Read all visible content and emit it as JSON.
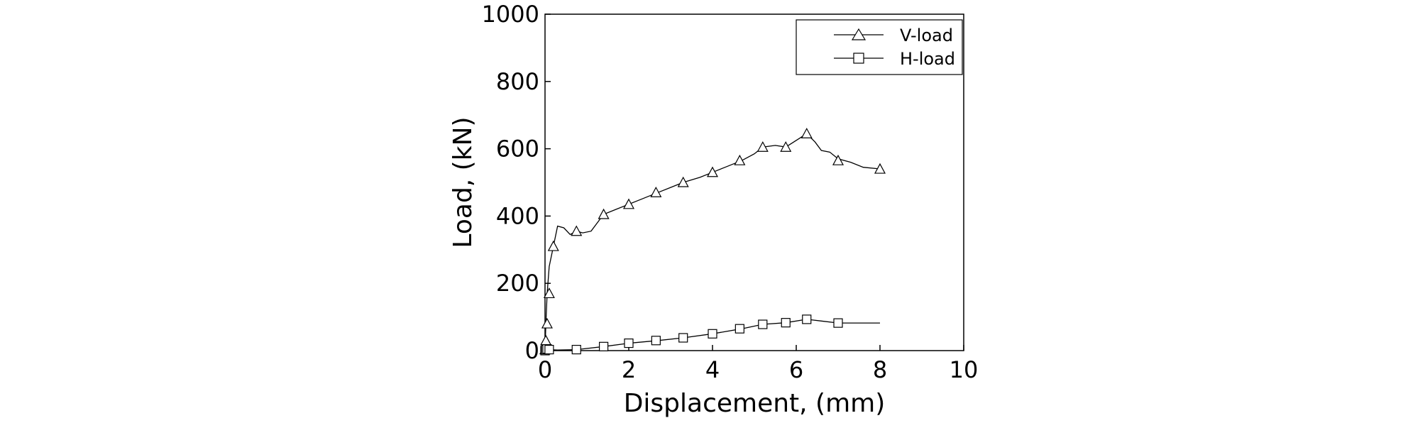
{
  "chart_data": {
    "type": "line",
    "xlabel": "Displacement, (mm)",
    "ylabel": "Load, (kN)",
    "xlim": [
      0,
      10
    ],
    "ylim": [
      0,
      1000
    ],
    "xticks": [
      0,
      2,
      4,
      6,
      8,
      10
    ],
    "yticks": [
      0,
      200,
      400,
      600,
      800,
      1000
    ],
    "grid": false,
    "legend_position": "top-right",
    "series": [
      {
        "name": "V-load",
        "marker": "triangle-icon",
        "color": "#000000",
        "x": [
          0,
          0.02,
          0.05,
          0.1,
          0.2,
          0.3,
          0.45,
          0.6,
          0.75,
          0.9,
          1.1,
          1.4,
          1.7,
          2.0,
          2.3,
          2.7,
          3.0,
          3.3,
          3.7,
          4.0,
          4.3,
          4.7,
          5.0,
          5.2,
          5.5,
          5.75,
          6.0,
          6.25,
          6.45,
          6.6,
          6.8,
          7.0,
          7.3,
          7.6,
          8.0
        ],
        "y": [
          0,
          80,
          170,
          250,
          310,
          370,
          365,
          345,
          355,
          350,
          355,
          405,
          420,
          435,
          450,
          470,
          485,
          500,
          515,
          530,
          545,
          565,
          585,
          605,
          610,
          605,
          625,
          645,
          620,
          595,
          590,
          570,
          560,
          545,
          540
        ]
      },
      {
        "name": "H-load",
        "marker": "square-icon",
        "color": "#000000",
        "x": [
          0,
          0.02,
          0.05,
          0.1,
          0.3,
          0.75,
          1.4,
          2.0,
          2.7,
          3.3,
          4.0,
          4.7,
          5.2,
          5.75,
          6.25,
          6.6,
          7.0,
          7.5,
          8.0
        ],
        "y": [
          0,
          2,
          3,
          3,
          2,
          3,
          12,
          22,
          30,
          38,
          50,
          65,
          78,
          83,
          93,
          88,
          82,
          82,
          82
        ]
      }
    ],
    "marker_points": {
      "V-load": {
        "x": [
          0,
          0.02,
          0.05,
          0.1,
          0.2,
          0.75,
          1.4,
          2.0,
          2.65,
          3.3,
          4.0,
          4.65,
          5.2,
          5.75,
          6.25,
          7.0,
          8.0
        ],
        "y": [
          3,
          30,
          80,
          170,
          310,
          355,
          405,
          435,
          470,
          500,
          530,
          565,
          605,
          605,
          645,
          565,
          540
        ]
      },
      "H-load": {
        "x": [
          0,
          0.02,
          0.05,
          0.1,
          0.75,
          1.4,
          2.0,
          2.65,
          3.3,
          4.0,
          4.65,
          5.2,
          5.75,
          6.25,
          7.0
        ],
        "y": [
          0,
          3,
          5,
          3,
          3,
          12,
          22,
          30,
          38,
          50,
          65,
          78,
          83,
          93,
          82
        ]
      }
    }
  }
}
